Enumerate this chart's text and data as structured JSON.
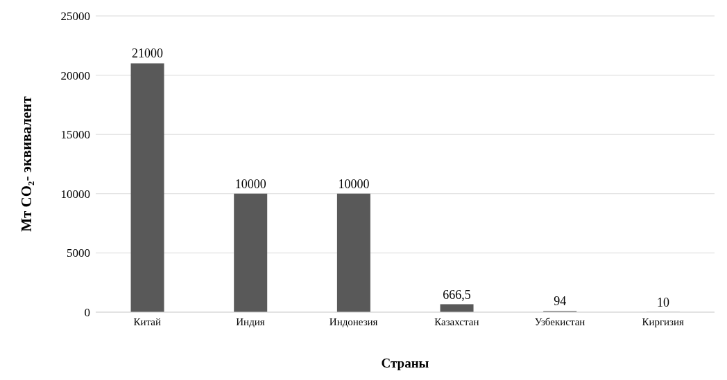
{
  "chart_data": {
    "type": "bar",
    "xlabel": "Страны",
    "ylabel": "Мт CO₂- эквивалент",
    "categories": [
      "Китай",
      "Индия",
      "Индонезия",
      "Казахстан",
      "Узбекистан",
      "Киргизия"
    ],
    "values": [
      21000,
      10000,
      10000,
      666.5,
      94,
      10
    ],
    "value_labels": [
      "21000",
      "10000",
      "10000",
      "666,5",
      "94",
      "10"
    ],
    "color": "#595959",
    "ylim": [
      0,
      25000
    ],
    "yticks": [
      0,
      5000,
      10000,
      15000,
      20000,
      25000
    ],
    "grid": "y"
  }
}
